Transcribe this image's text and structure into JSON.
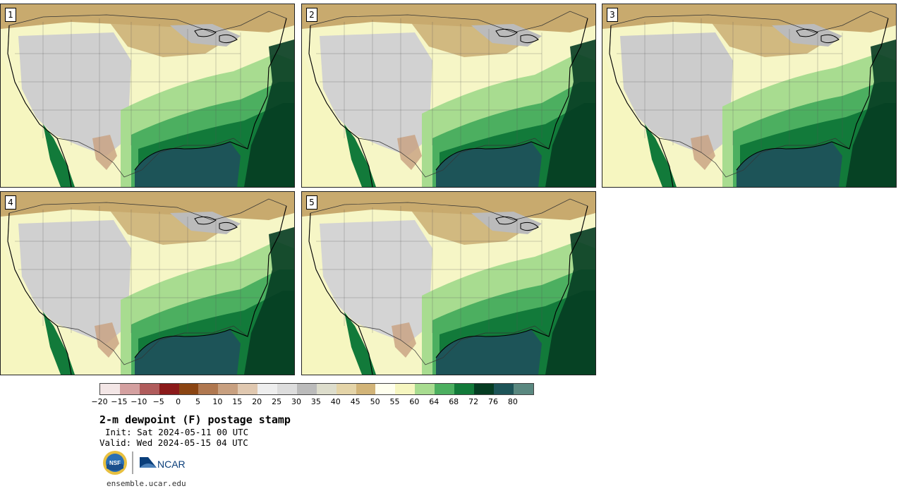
{
  "panels": [
    {
      "label": "1"
    },
    {
      "label": "2"
    },
    {
      "label": "3"
    },
    {
      "label": "4"
    },
    {
      "label": "5"
    }
  ],
  "colorbar": {
    "colors": [
      "#f3e6e6",
      "#d4a0a0",
      "#b05c5c",
      "#8b1a1a",
      "#8b4513",
      "#b07850",
      "#c8a080",
      "#e0c8b0",
      "#eeeeee",
      "#dddddd",
      "#bbbbbb",
      "#ddddcc",
      "#e4d4a8",
      "#d2b478",
      "#ffffee",
      "#f6f6c0",
      "#a8dc90",
      "#4caf60",
      "#127a3a",
      "#053c22",
      "#1d5458",
      "#5a8880"
    ],
    "ticks": [
      "−20",
      "−15",
      "−10",
      "−5",
      "0",
      "5",
      "10",
      "15",
      "20",
      "25",
      "30",
      "35",
      "40",
      "45",
      "50",
      "55",
      "60",
      "64",
      "68",
      "72",
      "76",
      "80"
    ]
  },
  "title": "2-m dewpoint (F) postage stamp",
  "init": "Init: Sat 2024-05-11 00 UTC",
  "valid": "Valid: Wed 2024-05-15 04 UTC",
  "logo": {
    "nsf": "NSF",
    "ncar": "NCAR"
  },
  "site": "ensemble.ucar.edu"
}
